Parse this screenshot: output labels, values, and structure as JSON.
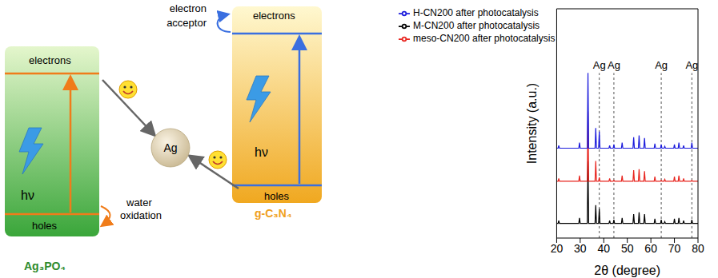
{
  "diagram": {
    "semiconductors": [
      {
        "name": "Ag₃PO₄",
        "band_top": "electrons",
        "band_bottom": "holes",
        "light": "hν",
        "reaction": [
          "water",
          "oxidation"
        ]
      },
      {
        "name": "g-C₃N₄",
        "band_top": "electrons",
        "band_bottom": "holes",
        "light": "hν",
        "reaction": [
          "electron",
          "acceptor"
        ]
      }
    ],
    "center": "Ag"
  },
  "chart_data": {
    "type": "line",
    "x_label": "2θ (degree)",
    "y_label": "Intensity (a.u.)",
    "x": [
      20,
      20.6,
      20.9,
      21.2,
      29.4,
      29.7,
      30.0,
      33.0,
      33.3,
      33.6,
      36.3,
      36.6,
      36.9,
      37.8,
      38.1,
      38.4,
      42.2,
      42.5,
      42.8,
      44.0,
      44.3,
      44.6,
      47.5,
      47.8,
      48.1,
      52.4,
      52.7,
      53.0,
      54.7,
      55.0,
      55.3,
      57.0,
      57.3,
      57.6,
      61.4,
      61.7,
      62.0,
      64.1,
      64.4,
      64.7,
      65.6,
      65.9,
      66.2,
      69.7,
      70.0,
      70.3,
      71.6,
      71.9,
      72.2,
      73.6,
      73.9,
      74.2,
      77.1,
      77.4,
      77.7,
      80
    ],
    "series": [
      {
        "name": "M-CN200 after photocatalysis",
        "color": "#000000",
        "values": [
          8,
          8,
          9.5,
          8,
          8,
          11,
          8,
          8,
          42,
          8,
          8,
          18,
          8,
          8,
          16,
          8,
          8,
          9.5,
          8,
          8,
          10,
          8,
          8,
          11,
          8,
          8,
          13,
          8,
          8,
          14,
          8,
          8,
          13,
          8,
          8,
          10.5,
          8,
          8,
          10,
          8,
          8,
          9,
          8,
          8,
          10.5,
          8,
          8,
          11,
          8,
          8,
          9.5,
          8,
          8,
          10,
          8,
          8
        ]
      },
      {
        "name": "meso-CN200 after photocatalysis",
        "color": "#e8251f",
        "values": [
          31,
          31,
          32.5,
          31,
          31,
          34,
          31,
          31,
          69,
          31,
          31,
          42,
          31,
          31,
          33,
          31,
          31,
          32.5,
          31,
          31,
          31.5,
          31,
          31,
          34,
          31,
          31,
          37,
          31,
          31,
          37.5,
          31,
          31,
          36.5,
          31,
          31,
          33.5,
          31,
          31,
          31.5,
          31,
          31,
          32,
          31,
          31,
          33.5,
          31,
          31,
          34,
          31,
          31,
          32.5,
          31,
          31,
          31.5,
          31,
          31
        ]
      },
      {
        "name": "H-CN200 after photocatalysis",
        "color": "#1c1cdc",
        "values": [
          49,
          49,
          50.5,
          49,
          49,
          52,
          49,
          49,
          90,
          49,
          49,
          60,
          49,
          49,
          58,
          49,
          49,
          50.5,
          49,
          49,
          51,
          49,
          49,
          52,
          49,
          49,
          55,
          49,
          49,
          56,
          49,
          49,
          54.5,
          49,
          49,
          51.5,
          49,
          49,
          51,
          49,
          49,
          50,
          49,
          49,
          51,
          49,
          49,
          52,
          49,
          49,
          50.5,
          49,
          49,
          52,
          49,
          49
        ]
      }
    ],
    "xlim": [
      20,
      80
    ],
    "xticks": [
      20,
      30,
      40,
      50,
      60,
      70,
      80
    ],
    "ylim": [
      0,
      125
    ],
    "tick_labels": "x",
    "grid": false,
    "legend": "upper left",
    "annotations": [
      {
        "text": "Ag",
        "x": 38.1
      },
      {
        "text": "Ag",
        "x": 44.3
      },
      {
        "text": "Ag",
        "x": 64.4
      },
      {
        "text": "Ag",
        "x": 77.4
      }
    ]
  }
}
